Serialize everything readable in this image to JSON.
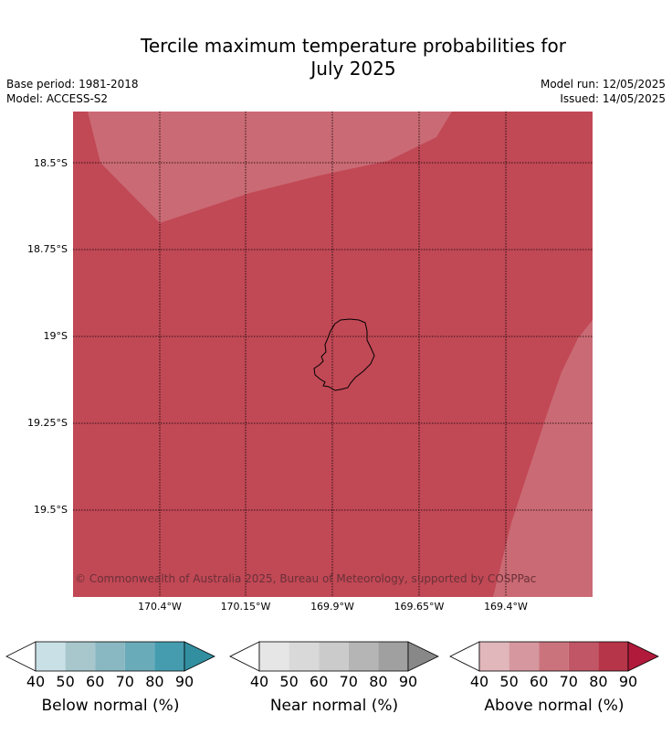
{
  "title": "Tercile maximum temperature probabilities for\nJuly 2025",
  "title_line1": "Tercile maximum temperature probabilities for",
  "title_line2": "July 2025",
  "base_period": "Base period: 1981-2018",
  "model": "Model: ACCESS-S2",
  "model_run": "Model run: 12/05/2025",
  "issued": "Issued: 14/05/2025",
  "map": {
    "region": "Niue",
    "lat_labels": [
      "18.5°S",
      "18.75°S",
      "19°S",
      "19.25°S",
      "19.5°S"
    ],
    "lon_labels": [
      "170.4°W",
      "170.15°W",
      "169.9°W",
      "169.65°W",
      "169.4°W"
    ],
    "fill_colors": {
      "above_80": "#c14855",
      "above_70": "#ca6a74"
    },
    "copyright": "© Commonwealth of Australia 2025, Bureau of Meteorology, supported by COSPPac"
  },
  "legends": [
    {
      "label": "Below normal (%)",
      "ticks": [
        "40",
        "50",
        "60",
        "70",
        "80",
        "90"
      ],
      "colors": [
        "#ffffff",
        "#c9e0e6",
        "#a7c7cc",
        "#89b7c2",
        "#6aabba",
        "#459caf",
        "#318fa0"
      ]
    },
    {
      "label": "Near normal (%)",
      "ticks": [
        "40",
        "50",
        "60",
        "70",
        "80",
        "90"
      ],
      "colors": [
        "#ffffff",
        "#e6e6e6",
        "#d9d9d9",
        "#cbcbcb",
        "#b5b5b5",
        "#a0a0a0",
        "#888888"
      ]
    },
    {
      "label": "Above normal (%)",
      "ticks": [
        "40",
        "50",
        "60",
        "70",
        "80",
        "90"
      ],
      "colors": [
        "#ffffff",
        "#e1b7bb",
        "#d6979e",
        "#cb737d",
        "#c15766",
        "#b63548",
        "#b11a3b"
      ]
    }
  ]
}
